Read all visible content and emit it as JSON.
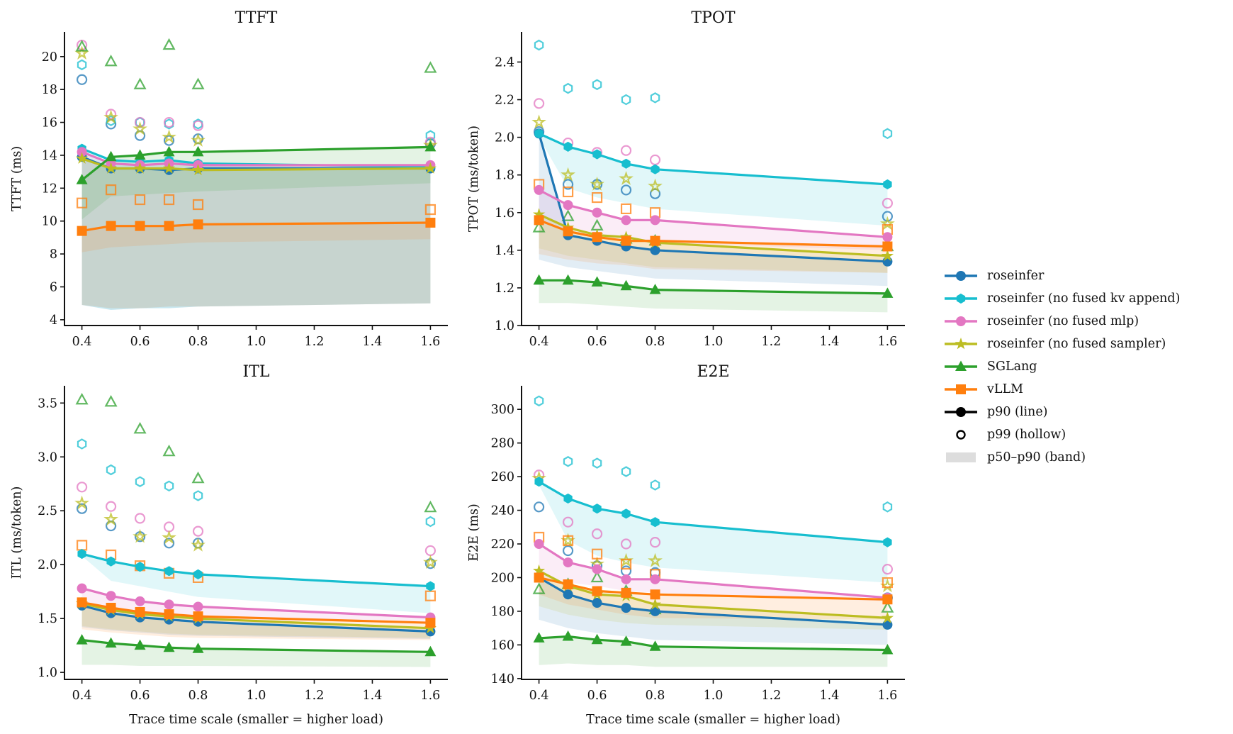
{
  "figure": {
    "series_styles": [
      {
        "name": "roseinfer",
        "color": "#1f77b4",
        "marker": "circle"
      },
      {
        "name": "roseinfer (no fused kv append)",
        "color": "#17becf",
        "marker": "hexagon"
      },
      {
        "name": "roseinfer (no fused mlp)",
        "color": "#e377c2",
        "marker": "circle"
      },
      {
        "name": "roseinfer (no fused sampler)",
        "color": "#bcbd22",
        "marker": "star"
      },
      {
        "name": "SGLang",
        "color": "#2ca02c",
        "marker": "triangle"
      },
      {
        "name": "vLLM",
        "color": "#ff7f0e",
        "marker": "square"
      }
    ],
    "legend": {
      "items": [
        {
          "label": "roseinfer",
          "type": "line",
          "color": "#1f77b4",
          "marker": "circle"
        },
        {
          "label": "roseinfer (no fused kv append)",
          "type": "line",
          "color": "#17becf",
          "marker": "hexagon"
        },
        {
          "label": "roseinfer (no fused mlp)",
          "type": "line",
          "color": "#e377c2",
          "marker": "circle"
        },
        {
          "label": "roseinfer (no fused sampler)",
          "type": "line",
          "color": "#bcbd22",
          "marker": "star"
        },
        {
          "label": "SGLang",
          "type": "line",
          "color": "#2ca02c",
          "marker": "triangle"
        },
        {
          "label": "vLLM",
          "type": "line",
          "color": "#ff7f0e",
          "marker": "square"
        },
        {
          "label": "p90 (line)",
          "type": "line",
          "color": "#000000",
          "marker": "circle"
        },
        {
          "label": "p99 (hollow)",
          "type": "hollow",
          "color": "#000000",
          "marker": "circle"
        },
        {
          "label": "p50–p90 (band)",
          "type": "band",
          "color": "#dddddd",
          "marker": ""
        }
      ],
      "placement": "right"
    }
  },
  "chart_data": [
    {
      "type": "line",
      "title": "TTFT",
      "xlabel": "",
      "ylabel": "TTFT (ms)",
      "x": [
        0.4,
        0.5,
        0.6,
        0.7,
        0.8,
        1.6
      ],
      "xticks": [
        "0.4",
        "0.6",
        "0.8",
        "1.0",
        "1.2",
        "1.4",
        "1.6"
      ],
      "yticks": [
        "4",
        "6",
        "8",
        "10",
        "12",
        "14",
        "16",
        "18",
        "20"
      ],
      "xlim": [
        0.34,
        1.66
      ],
      "ylim": [
        3.65,
        21.5
      ],
      "grid": false,
      "series": [
        {
          "name": "roseinfer",
          "p90": [
            13.9,
            13.2,
            13.2,
            13.1,
            13.2,
            13.2
          ],
          "p99": [
            18.6,
            15.9,
            15.2,
            14.9,
            15.0,
            14.7
          ],
          "p50": [
            4.9,
            4.6,
            4.7,
            4.7,
            4.8,
            5.0
          ]
        },
        {
          "name": "roseinfer (no fused kv append)",
          "p90": [
            14.4,
            13.7,
            13.6,
            13.7,
            13.5,
            13.3
          ],
          "p99": [
            19.5,
            16.1,
            16.0,
            15.9,
            15.9,
            15.2
          ],
          "p50": [
            4.9,
            4.6,
            4.7,
            4.7,
            4.8,
            5.0
          ]
        },
        {
          "name": "roseinfer (no fused mlp)",
          "p90": [
            14.2,
            13.5,
            13.4,
            13.5,
            13.4,
            13.4
          ],
          "p99": [
            20.7,
            16.5,
            16.0,
            16.0,
            15.8,
            14.8
          ],
          "p50": [
            4.9,
            4.7,
            4.7,
            4.8,
            4.8,
            5.0
          ]
        },
        {
          "name": "roseinfer (no fused sampler)",
          "p90": [
            13.8,
            13.2,
            13.2,
            13.2,
            13.1,
            13.2
          ],
          "p99": [
            20.2,
            16.3,
            15.6,
            15.1,
            14.9,
            14.6
          ],
          "p50": [
            4.9,
            4.7,
            4.7,
            4.8,
            4.8,
            5.0
          ]
        },
        {
          "name": "SGLang",
          "p90": [
            12.5,
            13.9,
            14.0,
            14.2,
            14.2,
            14.5
          ],
          "p99": [
            20.6,
            19.7,
            18.3,
            20.7,
            18.3,
            19.3
          ],
          "p50": [
            10.1,
            11.5,
            11.6,
            11.7,
            11.8,
            12.3
          ]
        },
        {
          "name": "vLLM",
          "p90": [
            9.4,
            9.7,
            9.7,
            9.7,
            9.8,
            9.9
          ],
          "p99": [
            11.1,
            11.9,
            11.3,
            11.3,
            11.0,
            10.7
          ],
          "p50": [
            8.1,
            8.4,
            8.5,
            8.6,
            8.7,
            8.9
          ]
        }
      ]
    },
    {
      "type": "line",
      "title": "TPOT",
      "xlabel": "",
      "ylabel": "TPOT (ms/token)",
      "x": [
        0.4,
        0.5,
        0.6,
        0.7,
        0.8,
        1.6
      ],
      "xticks": [
        "0.4",
        "0.6",
        "0.8",
        "1.0",
        "1.2",
        "1.4",
        "1.6"
      ],
      "yticks": [
        "1.0",
        "1.2",
        "1.4",
        "1.6",
        "1.8",
        "2.0",
        "2.2",
        "2.4"
      ],
      "xlim": [
        0.34,
        1.66
      ],
      "ylim": [
        1.0,
        2.56
      ],
      "grid": false,
      "series": [
        {
          "name": "roseinfer",
          "p90": [
            2.02,
            1.48,
            1.45,
            1.42,
            1.4,
            1.34
          ],
          "p99": [
            2.03,
            1.75,
            1.75,
            1.72,
            1.7,
            1.58
          ],
          "p50": [
            1.35,
            1.31,
            1.29,
            1.27,
            1.25,
            1.21
          ]
        },
        {
          "name": "roseinfer (no fused kv append)",
          "p90": [
            2.02,
            1.95,
            1.91,
            1.86,
            1.83,
            1.75
          ],
          "p99": [
            2.49,
            2.26,
            2.28,
            2.2,
            2.21,
            2.02
          ],
          "p50": [
            2.0,
            1.73,
            1.68,
            1.65,
            1.62,
            1.53
          ]
        },
        {
          "name": "roseinfer (no fused mlp)",
          "p90": [
            1.72,
            1.64,
            1.6,
            1.56,
            1.56,
            1.47
          ],
          "p99": [
            2.18,
            1.97,
            1.92,
            1.93,
            1.88,
            1.65
          ],
          "p50": [
            1.55,
            1.5,
            1.47,
            1.45,
            1.44,
            1.4
          ]
        },
        {
          "name": "roseinfer (no fused sampler)",
          "p90": [
            1.59,
            1.52,
            1.48,
            1.47,
            1.44,
            1.37
          ],
          "p99": [
            2.08,
            1.8,
            1.75,
            1.78,
            1.74,
            1.54
          ],
          "p50": [
            1.41,
            1.37,
            1.35,
            1.33,
            1.31,
            1.28
          ]
        },
        {
          "name": "SGLang",
          "p90": [
            1.24,
            1.24,
            1.23,
            1.21,
            1.19,
            1.17
          ],
          "p99": [
            1.52,
            1.58,
            1.53,
            1.46,
            1.45,
            1.42
          ],
          "p50": [
            1.12,
            1.12,
            1.11,
            1.1,
            1.09,
            1.07
          ]
        },
        {
          "name": "vLLM",
          "p90": [
            1.56,
            1.5,
            1.47,
            1.45,
            1.45,
            1.42
          ],
          "p99": [
            1.75,
            1.71,
            1.68,
            1.62,
            1.6,
            1.51
          ],
          "p50": [
            1.38,
            1.35,
            1.33,
            1.32,
            1.3,
            1.28
          ]
        }
      ]
    },
    {
      "type": "line",
      "title": "ITL",
      "xlabel": "Trace time scale (smaller = higher load)",
      "ylabel": "ITL (ms/token)",
      "x": [
        0.4,
        0.5,
        0.6,
        0.7,
        0.8,
        1.6
      ],
      "xticks": [
        "0.4",
        "0.6",
        "0.8",
        "1.0",
        "1.2",
        "1.4",
        "1.6"
      ],
      "yticks": [
        "1.0",
        "1.5",
        "2.0",
        "2.5",
        "3.0",
        "3.5"
      ],
      "xlim": [
        0.34,
        1.66
      ],
      "ylim": [
        0.935,
        3.66
      ],
      "grid": false,
      "series": [
        {
          "name": "roseinfer",
          "p90": [
            1.62,
            1.55,
            1.51,
            1.49,
            1.47,
            1.38
          ],
          "p99": [
            2.52,
            2.36,
            2.26,
            2.2,
            2.2,
            2.01
          ],
          "p50": [
            1.42,
            1.39,
            1.37,
            1.35,
            1.34,
            1.31
          ]
        },
        {
          "name": "roseinfer (no fused kv append)",
          "p90": [
            2.1,
            2.03,
            1.98,
            1.94,
            1.91,
            1.8
          ],
          "p99": [
            3.12,
            2.88,
            2.77,
            2.73,
            2.64,
            2.4
          ],
          "p50": [
            2.08,
            1.85,
            1.8,
            1.75,
            1.7,
            1.55
          ]
        },
        {
          "name": "roseinfer (no fused mlp)",
          "p90": [
            1.78,
            1.71,
            1.66,
            1.63,
            1.61,
            1.51
          ],
          "p99": [
            2.72,
            2.54,
            2.43,
            2.35,
            2.31,
            2.13
          ],
          "p50": [
            1.6,
            1.56,
            1.53,
            1.51,
            1.5,
            1.46
          ]
        },
        {
          "name": "roseinfer (no fused sampler)",
          "p90": [
            1.64,
            1.58,
            1.54,
            1.52,
            1.5,
            1.41
          ],
          "p99": [
            2.57,
            2.42,
            2.26,
            2.25,
            2.18,
            2.02
          ],
          "p50": [
            1.43,
            1.4,
            1.38,
            1.36,
            1.35,
            1.32
          ]
        },
        {
          "name": "SGLang",
          "p90": [
            1.3,
            1.27,
            1.25,
            1.23,
            1.22,
            1.19
          ],
          "p99": [
            3.53,
            3.51,
            3.26,
            3.05,
            2.8,
            2.53
          ],
          "p50": [
            1.07,
            1.07,
            1.06,
            1.06,
            1.06,
            1.05
          ]
        },
        {
          "name": "vLLM",
          "p90": [
            1.65,
            1.6,
            1.56,
            1.54,
            1.52,
            1.46
          ],
          "p99": [
            2.18,
            2.09,
            1.99,
            1.92,
            1.88,
            1.71
          ],
          "p50": [
            1.4,
            1.37,
            1.35,
            1.33,
            1.32,
            1.3
          ]
        }
      ]
    },
    {
      "type": "line",
      "title": "E2E",
      "xlabel": "Trace time scale (smaller = higher load)",
      "ylabel": "E2E (ms)",
      "x": [
        0.4,
        0.5,
        0.6,
        0.7,
        0.8,
        1.6
      ],
      "xticks": [
        "0.4",
        "0.6",
        "0.8",
        "1.0",
        "1.2",
        "1.4",
        "1.6"
      ],
      "yticks": [
        "140",
        "160",
        "180",
        "200",
        "220",
        "240",
        "260",
        "280",
        "300"
      ],
      "xlim": [
        0.34,
        1.66
      ],
      "ylim": [
        139.5,
        314
      ],
      "grid": false,
      "series": [
        {
          "name": "roseinfer",
          "p90": [
            200,
            190,
            185,
            182,
            180,
            172
          ],
          "p99": [
            242,
            216,
            207,
            204,
            203,
            188
          ],
          "p50": [
            175,
            170,
            167,
            165,
            163,
            160
          ]
        },
        {
          "name": "roseinfer (no fused kv append)",
          "p90": [
            257,
            247,
            241,
            238,
            233,
            221
          ],
          "p99": [
            305,
            269,
            268,
            263,
            255,
            242
          ],
          "p50": [
            255,
            222,
            213,
            209,
            206,
            197
          ]
        },
        {
          "name": "roseinfer (no fused mlp)",
          "p90": [
            220,
            209,
            205,
            199,
            199,
            188
          ],
          "p99": [
            261,
            233,
            226,
            220,
            221,
            205
          ],
          "p50": [
            200,
            197,
            195,
            192,
            191,
            186
          ]
        },
        {
          "name": "roseinfer (no fused sampler)",
          "p90": [
            204,
            195,
            190,
            189,
            184,
            176
          ],
          "p99": [
            259,
            222,
            208,
            210,
            210,
            195
          ],
          "p50": [
            183,
            178,
            175,
            173,
            172,
            169
          ]
        },
        {
          "name": "SGLang",
          "p90": [
            164,
            165,
            163,
            162,
            159,
            157
          ],
          "p99": [
            193,
            196,
            200,
            192,
            181,
            182
          ],
          "p50": [
            148,
            149,
            148,
            148,
            147,
            147
          ]
        },
        {
          "name": "vLLM",
          "p90": [
            200,
            196,
            192,
            191,
            190,
            187
          ],
          "p99": [
            224,
            222,
            214,
            208,
            202,
            197
          ],
          "p50": [
            190,
            184,
            181,
            178,
            176,
            175
          ]
        }
      ]
    }
  ]
}
